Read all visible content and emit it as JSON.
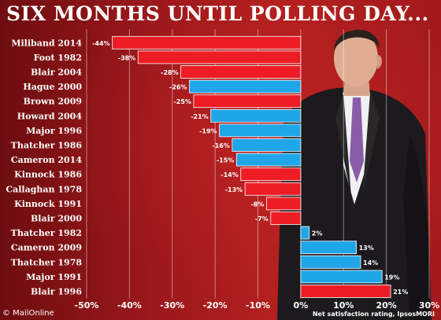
{
  "title": "SIX MONTHS UNTIL POLLING DAY...",
  "credit": "© MailOnline",
  "source": "Net satisfaction rating, IpsosMORI",
  "colors": {
    "negative_red": "#ee1c25",
    "blue": "#1fa6e8",
    "background": "#a11a1c",
    "text": "#ffffff"
  },
  "chart_data": {
    "type": "bar",
    "orientation": "horizontal",
    "categories": [
      "Miliband 2014",
      "Foot 1982",
      "Blair 2004",
      "Hague 2000",
      "Brown 2009",
      "Howard 2004",
      "Major 1996",
      "Thatcher 1986",
      "Cameron 2014",
      "Kinnock 1986",
      "Callaghan 1978",
      "Kinnock 1991",
      "Blair 2000",
      "Thatcher 1982",
      "Cameron 2009",
      "Thatcher 1978",
      "Major 1991",
      "Blair 1996"
    ],
    "values": [
      -44,
      -38,
      -28,
      -26,
      -25,
      -21,
      -19,
      -16,
      -15,
      -14,
      -13,
      -8,
      -7,
      2,
      13,
      14,
      19,
      21
    ],
    "data_labels": [
      "-44%",
      "-38%",
      "-28%",
      "-26%",
      "-25%",
      "-21%",
      "-19%",
      "-16%",
      "-15%",
      "-14%",
      "-13%",
      "-8%",
      "-7%",
      "2%",
      "13%",
      "14%",
      "19%",
      "21%"
    ],
    "bar_colors": [
      "red",
      "red",
      "red",
      "blue",
      "red",
      "blue",
      "blue",
      "blue",
      "blue",
      "red",
      "red",
      "red",
      "red",
      "blue",
      "blue",
      "blue",
      "blue",
      "red"
    ],
    "x_ticks": [
      -50,
      -40,
      -30,
      -20,
      -10,
      0,
      10,
      20,
      30
    ],
    "x_tick_labels": [
      "-50%",
      "-40%",
      "-30%",
      "-20%",
      "-10%",
      "0%",
      "10%",
      "20%",
      "30%"
    ],
    "xlim": [
      -50,
      30
    ],
    "grid": true,
    "xlabel": "",
    "ylabel": ""
  }
}
